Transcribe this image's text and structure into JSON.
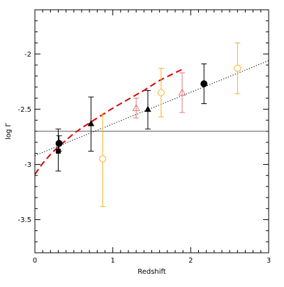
{
  "chart_data": {
    "type": "scatter",
    "xlabel": "Redshift",
    "ylabel": "log Γ",
    "xlim": [
      0,
      3
    ],
    "ylim": [
      -3.8,
      -1.6
    ],
    "xticks": [
      0,
      1,
      2,
      3
    ],
    "xtick_labels": [
      "0",
      "1",
      "2",
      "3"
    ],
    "yticks": [
      -3.5,
      -3,
      -2.5,
      -2
    ],
    "ytick_labels": [
      "-3.5",
      "-3",
      "-2.5",
      "-2"
    ],
    "x_minor_step": 0.1,
    "y_minor_step": 0.1,
    "grid": false,
    "colors": {
      "black": "#000000",
      "orange": "#f5b01e",
      "pink": "#e07a7a",
      "red": "#e00000",
      "gray": "#555555"
    },
    "series": [
      {
        "marker": "filled-circle",
        "color": "#000000",
        "points": [
          {
            "x": 0.31,
            "y": -2.81,
            "yerr_low": 0.07,
            "yerr_high": 0.07
          },
          {
            "x": 2.17,
            "y": -2.27,
            "yerr_low": 0.18,
            "yerr_high": 0.18
          }
        ]
      },
      {
        "marker": "filled-square",
        "color": "#000000",
        "points": [
          {
            "x": 0.3,
            "y": -2.88,
            "yerr_low": 0.18,
            "yerr_high": 0.2
          }
        ]
      },
      {
        "marker": "filled-triangle",
        "color": "#000000",
        "points": [
          {
            "x": 0.72,
            "y": -2.63,
            "yerr_low": 0.25,
            "yerr_high": 0.24
          },
          {
            "x": 1.45,
            "y": -2.5,
            "yerr_low": 0.18,
            "yerr_high": 0.17
          }
        ]
      },
      {
        "marker": "open-circle",
        "color": "#f5b01e",
        "points": [
          {
            "x": 0.87,
            "y": -2.95,
            "yerr_low": 0.43,
            "yerr_high": 0.4
          },
          {
            "x": 1.62,
            "y": -2.35,
            "yerr_low": 0.22,
            "yerr_high": 0.22
          },
          {
            "x": 2.6,
            "y": -2.13,
            "yerr_low": 0.23,
            "yerr_high": 0.23
          }
        ]
      },
      {
        "marker": "open-triangle",
        "color": "#e07a7a",
        "points": [
          {
            "x": 1.3,
            "y": -2.49,
            "yerr_low": 0.09,
            "yerr_high": 0.09
          },
          {
            "x": 1.89,
            "y": -2.35,
            "yerr_low": 0.18,
            "yerr_high": 0.18
          }
        ]
      }
    ],
    "lines": [
      {
        "style": "solid",
        "color": "#555555",
        "x": [
          0,
          3
        ],
        "y": [
          -2.7,
          -2.7
        ]
      },
      {
        "style": "dotted",
        "color": "#000000",
        "x": [
          0,
          3
        ],
        "y": [
          -2.92,
          -2.06
        ]
      },
      {
        "style": "dashed",
        "color": "#e00000",
        "x": [
          0,
          0.1,
          0.2,
          0.3,
          0.4,
          0.5,
          0.6,
          0.8,
          1.0,
          1.2,
          1.4,
          1.6,
          1.8,
          1.92
        ],
        "y": [
          -3.09,
          -2.99,
          -2.91,
          -2.84,
          -2.78,
          -2.72,
          -2.67,
          -2.58,
          -2.49,
          -2.41,
          -2.33,
          -2.24,
          -2.17,
          -2.13
        ]
      }
    ]
  }
}
